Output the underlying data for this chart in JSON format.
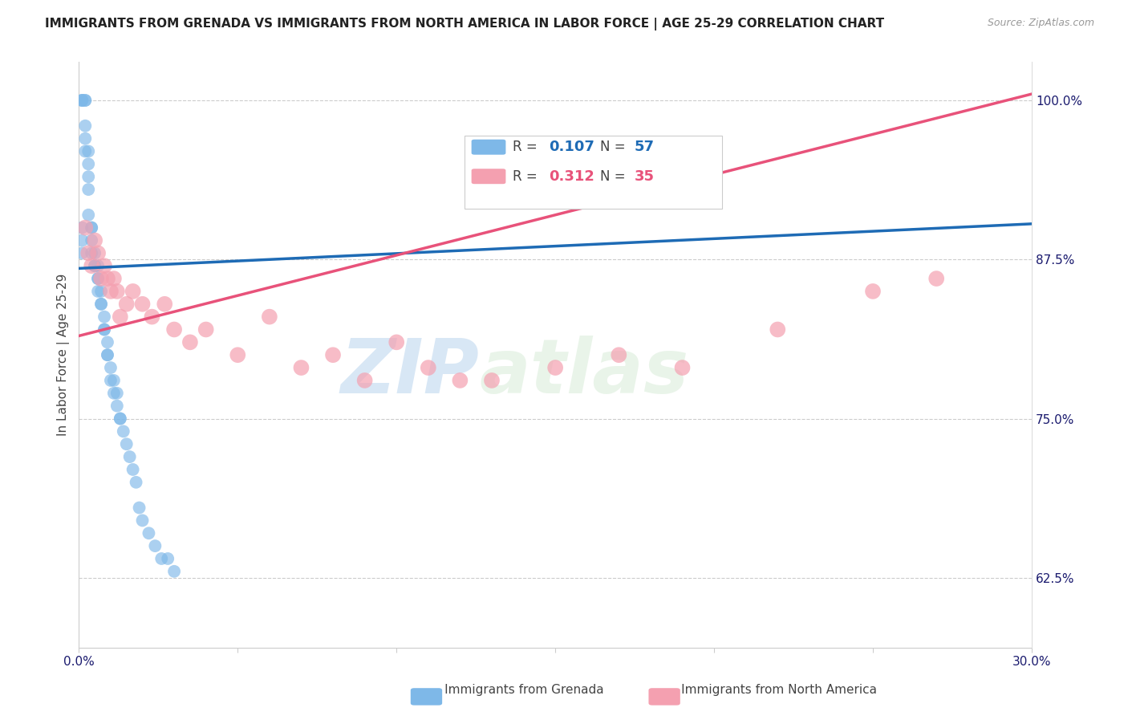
{
  "title": "IMMIGRANTS FROM GRENADA VS IMMIGRANTS FROM NORTH AMERICA IN LABOR FORCE | AGE 25-29 CORRELATION CHART",
  "source": "Source: ZipAtlas.com",
  "ylabel": "In Labor Force | Age 25-29",
  "xlim": [
    0.0,
    0.3
  ],
  "ylim": [
    0.57,
    1.03
  ],
  "yticks_right": [
    0.625,
    0.75,
    0.875,
    1.0
  ],
  "ytick_labels_right": [
    "62.5%",
    "75.0%",
    "87.5%",
    "100.0%"
  ],
  "legend_blue_label": "Immigrants from Grenada",
  "legend_pink_label": "Immigrants from North America",
  "R_blue": 0.107,
  "N_blue": 57,
  "R_pink": 0.312,
  "N_pink": 35,
  "blue_color": "#7EB8E8",
  "pink_color": "#F4A0B0",
  "blue_line_color": "#1E6BB5",
  "pink_line_color": "#E8527A",
  "watermark_zip": "ZIP",
  "watermark_atlas": "atlas",
  "blue_x": [
    0.001,
    0.001,
    0.001,
    0.002,
    0.002,
    0.002,
    0.002,
    0.002,
    0.003,
    0.003,
    0.003,
    0.003,
    0.003,
    0.004,
    0.004,
    0.004,
    0.004,
    0.005,
    0.005,
    0.005,
    0.005,
    0.006,
    0.006,
    0.006,
    0.006,
    0.007,
    0.007,
    0.007,
    0.008,
    0.008,
    0.008,
    0.009,
    0.009,
    0.009,
    0.01,
    0.01,
    0.011,
    0.011,
    0.012,
    0.012,
    0.013,
    0.013,
    0.014,
    0.015,
    0.016,
    0.017,
    0.018,
    0.019,
    0.02,
    0.022,
    0.024,
    0.026,
    0.028,
    0.03,
    0.001,
    0.001,
    0.001
  ],
  "blue_y": [
    1.0,
    1.0,
    1.0,
    1.0,
    1.0,
    0.98,
    0.97,
    0.96,
    0.96,
    0.95,
    0.94,
    0.93,
    0.91,
    0.9,
    0.9,
    0.89,
    0.88,
    0.88,
    0.87,
    0.87,
    0.87,
    0.87,
    0.86,
    0.86,
    0.85,
    0.85,
    0.84,
    0.84,
    0.83,
    0.82,
    0.82,
    0.81,
    0.8,
    0.8,
    0.79,
    0.78,
    0.78,
    0.77,
    0.77,
    0.76,
    0.75,
    0.75,
    0.74,
    0.73,
    0.72,
    0.71,
    0.7,
    0.68,
    0.67,
    0.66,
    0.65,
    0.64,
    0.64,
    0.63,
    0.88,
    0.89,
    0.9
  ],
  "pink_x": [
    0.002,
    0.003,
    0.004,
    0.005,
    0.006,
    0.007,
    0.008,
    0.009,
    0.01,
    0.011,
    0.012,
    0.013,
    0.015,
    0.017,
    0.02,
    0.023,
    0.027,
    0.03,
    0.035,
    0.04,
    0.05,
    0.06,
    0.07,
    0.08,
    0.09,
    0.1,
    0.11,
    0.13,
    0.15,
    0.17,
    0.19,
    0.22,
    0.25,
    0.27,
    0.12
  ],
  "pink_y": [
    0.9,
    0.88,
    0.87,
    0.89,
    0.88,
    0.86,
    0.87,
    0.86,
    0.85,
    0.86,
    0.85,
    0.83,
    0.84,
    0.85,
    0.84,
    0.83,
    0.84,
    0.82,
    0.81,
    0.82,
    0.8,
    0.83,
    0.79,
    0.8,
    0.78,
    0.81,
    0.79,
    0.78,
    0.79,
    0.8,
    0.79,
    0.82,
    0.85,
    0.86,
    0.78
  ],
  "blue_trend_x0": 0.0,
  "blue_trend_y0": 0.868,
  "blue_trend_x1": 0.3,
  "blue_trend_y1": 0.903,
  "pink_trend_x0": 0.0,
  "pink_trend_y0": 0.815,
  "pink_trend_x1": 0.3,
  "pink_trend_y1": 1.005
}
